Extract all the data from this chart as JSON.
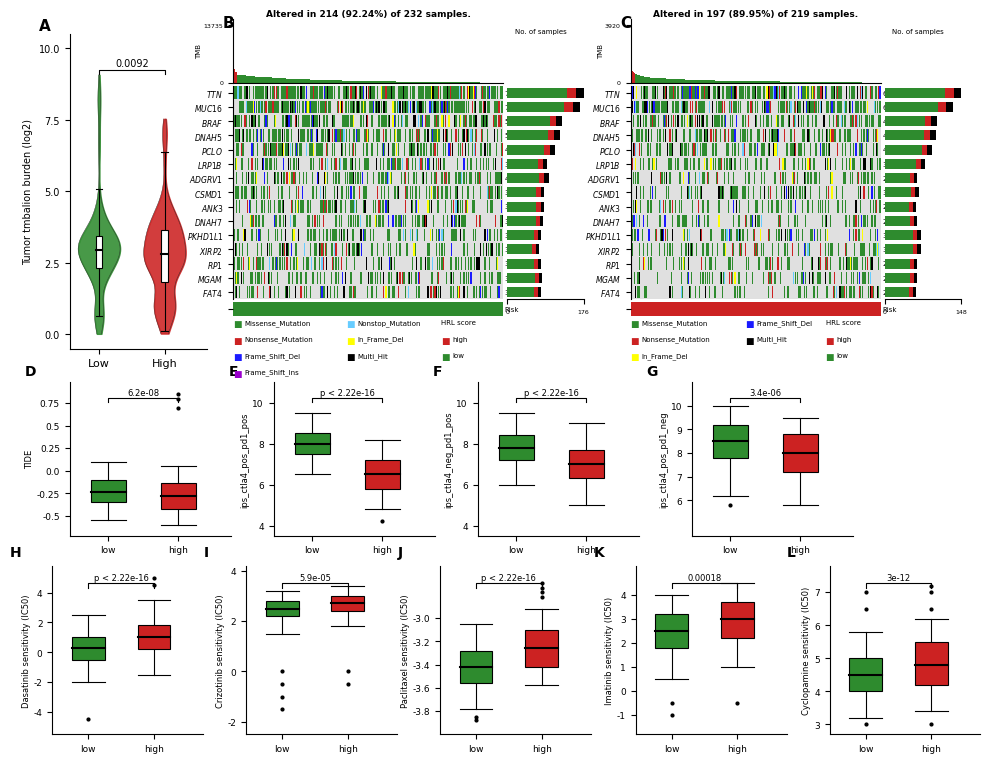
{
  "panel_A": {
    "title_label": "A",
    "pvalue": "0.0092",
    "ylabel": "Tumor tmbalion burden (log2)",
    "xlabel_low": "Low",
    "xlabel_high": "High",
    "ylim": [
      -0.5,
      10.5
    ],
    "yticks": [
      0.0,
      2.5,
      5.0,
      7.5,
      10.0
    ]
  },
  "panel_B": {
    "title_label": "B",
    "title": "Altered in 214 (92.24%) of 232 samples.",
    "tmb_max": 13735,
    "samples": 232,
    "bar_max": 176,
    "genes": [
      "TTN",
      "MUC16",
      "BRAF",
      "DNAH5",
      "PCLO",
      "LRP1B",
      "ADGRV1",
      "CSMD1",
      "ANK3",
      "DNAH7",
      "PKHD1L1",
      "XIRP2",
      "RP1",
      "MGAM",
      "FAT4"
    ],
    "pcts_low": [
      76,
      72,
      54,
      52,
      47,
      39,
      41,
      37,
      37,
      36,
      34,
      32,
      34,
      35,
      34
    ],
    "risk_color": "#2e8b2e",
    "risk_label": "low"
  },
  "panel_C": {
    "title_label": "C",
    "title": "Altered in 197 (89.95%) of 219 samples.",
    "tmb_max": 3920,
    "samples": 219,
    "bar_max": 148,
    "genes": [
      "TTN",
      "MUC16",
      "BRAF",
      "DNAH5",
      "PCLO",
      "LRP1B",
      "ADGRV1",
      "CSMD1",
      "ANK3",
      "DNAH7",
      "PKHD1L1",
      "XIRP2",
      "RP1",
      "MGAM",
      "FAT4"
    ],
    "pcts_high": [
      68,
      60,
      46,
      45,
      42,
      36,
      29,
      30,
      28,
      29,
      32,
      32,
      29,
      29,
      28
    ],
    "risk_color": "#cc2222",
    "risk_label": "high"
  },
  "panel_D": {
    "title_label": "D",
    "pvalue": "6.2e-08",
    "ylabel": "TIDE",
    "low": {
      "median": -0.23,
      "q1": -0.35,
      "q3": -0.1,
      "whisker_low": -0.55,
      "whisker_high": 0.1
    },
    "high": {
      "median": -0.28,
      "q1": -0.42,
      "q3": -0.14,
      "whisker_low": -0.6,
      "whisker_high": 0.05
    },
    "outliers_high": [
      0.7,
      0.8,
      0.85
    ],
    "ylim": [
      -0.72,
      0.98
    ],
    "yticks": [
      -0.5,
      -0.25,
      0.0,
      0.25,
      0.5,
      0.75
    ],
    "color_low": "#2e8b2e",
    "color_high": "#cc2222"
  },
  "panel_E": {
    "title_label": "E",
    "pvalue": "p < 2.22e-16",
    "ylabel": "ips_ctla4_pos_pd1_pos",
    "low": {
      "median": 8.0,
      "q1": 7.5,
      "q3": 8.5,
      "whisker_low": 6.5,
      "whisker_high": 9.5
    },
    "high": {
      "median": 6.5,
      "q1": 5.8,
      "q3": 7.2,
      "whisker_low": 4.8,
      "whisker_high": 8.2
    },
    "outliers_high": [
      4.2
    ],
    "ylim": [
      3.5,
      11.0
    ],
    "yticks": [
      4,
      6,
      8,
      10
    ],
    "color_low": "#2e8b2e",
    "color_high": "#cc2222"
  },
  "panel_F": {
    "title_label": "F",
    "pvalue": "p < 2.22e-16",
    "ylabel": "ips_ctla4_neg_pd1_pos",
    "low": {
      "median": 7.8,
      "q1": 7.2,
      "q3": 8.4,
      "whisker_low": 6.0,
      "whisker_high": 9.5
    },
    "high": {
      "median": 7.0,
      "q1": 6.3,
      "q3": 7.7,
      "whisker_low": 5.0,
      "whisker_high": 9.0
    },
    "ylim": [
      3.5,
      11.0
    ],
    "yticks": [
      4,
      6,
      8,
      10
    ],
    "color_low": "#2e8b2e",
    "color_high": "#cc2222"
  },
  "panel_G": {
    "title_label": "G",
    "pvalue": "3.4e-06",
    "ylabel": "ips_ctla4_pos_pd1_neg",
    "low": {
      "median": 8.5,
      "q1": 7.8,
      "q3": 9.2,
      "whisker_low": 6.2,
      "whisker_high": 10.0
    },
    "high": {
      "median": 8.0,
      "q1": 7.2,
      "q3": 8.8,
      "whisker_low": 5.8,
      "whisker_high": 9.5
    },
    "outliers_low": [
      5.8
    ],
    "ylim": [
      4.5,
      11.0
    ],
    "yticks": [
      6,
      7,
      8,
      9,
      10
    ],
    "color_low": "#2e8b2e",
    "color_high": "#cc2222"
  },
  "panel_H": {
    "title_label": "H",
    "pvalue": "p < 2.22e-16",
    "ylabel": "Dasatinib sensitivity (IC50)",
    "low": {
      "median": 0.3,
      "q1": -0.5,
      "q3": 1.0,
      "whisker_low": -2.0,
      "whisker_high": 2.5
    },
    "high": {
      "median": 1.0,
      "q1": 0.2,
      "q3": 1.8,
      "whisker_low": -1.5,
      "whisker_high": 3.5
    },
    "outliers_low": [
      -4.5
    ],
    "outliers_high": [
      4.5,
      5.0
    ],
    "ylim": [
      -5.5,
      5.8
    ],
    "yticks": [
      -4,
      -2,
      0,
      2,
      4
    ],
    "color_low": "#2e8b2e",
    "color_high": "#cc2222"
  },
  "panel_I": {
    "title_label": "I",
    "pvalue": "5.9e-05",
    "ylabel": "Crizotinib sensitivity (IC50)",
    "low": {
      "median": 2.5,
      "q1": 2.2,
      "q3": 2.8,
      "whisker_low": 1.5,
      "whisker_high": 3.2
    },
    "high": {
      "median": 2.7,
      "q1": 2.4,
      "q3": 3.0,
      "whisker_low": 1.8,
      "whisker_high": 3.4
    },
    "outliers_low": [
      -1.5,
      -1.0,
      -0.5,
      0.0
    ],
    "outliers_high": [
      -0.5,
      0.0
    ],
    "ylim": [
      -2.5,
      4.2
    ],
    "yticks": [
      -2,
      0,
      2,
      4
    ],
    "color_low": "#2e8b2e",
    "color_high": "#cc2222"
  },
  "panel_J": {
    "title_label": "J",
    "pvalue": "p < 2.22e-16",
    "ylabel": "Paclitaxel sensitivity (IC50)",
    "low": {
      "median": -3.42,
      "q1": -3.56,
      "q3": -3.28,
      "whisker_low": -3.78,
      "whisker_high": -3.05
    },
    "high": {
      "median": -3.26,
      "q1": -3.42,
      "q3": -3.1,
      "whisker_low": -3.58,
      "whisker_high": -2.92
    },
    "outliers_low": [
      -3.85,
      -3.88
    ],
    "outliers_high": [
      -2.82,
      -2.78,
      -2.74,
      -2.7
    ],
    "ylim": [
      -4.0,
      -2.55
    ],
    "yticks": [
      -3.8,
      -3.6,
      -3.4,
      -3.2,
      -3.0
    ],
    "color_low": "#2e8b2e",
    "color_high": "#cc2222"
  },
  "panel_K": {
    "title_label": "K",
    "pvalue": "0.00018",
    "ylabel": "Imatinib sensitivity (IC50)",
    "low": {
      "median": 2.5,
      "q1": 1.8,
      "q3": 3.2,
      "whisker_low": 0.5,
      "whisker_high": 4.0
    },
    "high": {
      "median": 3.0,
      "q1": 2.2,
      "q3": 3.7,
      "whisker_low": 1.0,
      "whisker_high": 4.5
    },
    "outliers_low": [
      -0.5,
      -1.0
    ],
    "outliers_high": [
      -0.5
    ],
    "ylim": [
      -1.8,
      5.2
    ],
    "yticks": [
      -1,
      0,
      1,
      2,
      3,
      4
    ],
    "color_low": "#2e8b2e",
    "color_high": "#cc2222"
  },
  "panel_L": {
    "title_label": "L",
    "pvalue": "3e-12",
    "ylabel": "Cyclopamine sensitivity (IC50)",
    "low": {
      "median": 4.5,
      "q1": 4.0,
      "q3": 5.0,
      "whisker_low": 3.2,
      "whisker_high": 5.8
    },
    "high": {
      "median": 4.8,
      "q1": 4.2,
      "q3": 5.5,
      "whisker_low": 3.4,
      "whisker_high": 6.2
    },
    "outliers_low": [
      6.5,
      7.0,
      3.0
    ],
    "outliers_high": [
      6.5,
      7.0,
      7.2,
      3.0
    ],
    "ylim": [
      2.7,
      7.8
    ],
    "yticks": [
      3,
      4,
      5,
      6,
      7
    ],
    "color_low": "#2e8b2e",
    "color_high": "#cc2222"
  },
  "colors": {
    "green": "#2e8b2e",
    "red": "#cc2222",
    "missense": "#2e8b2e",
    "nonsense": "#cc2222",
    "frameshift_del": "#1a1aff",
    "frameshift_ins": "#9900cc",
    "nonstop": "#66ccff",
    "inframe_del": "#ffff00",
    "multi_hit": "#000000",
    "no_mutation": "#e0e0e0"
  }
}
